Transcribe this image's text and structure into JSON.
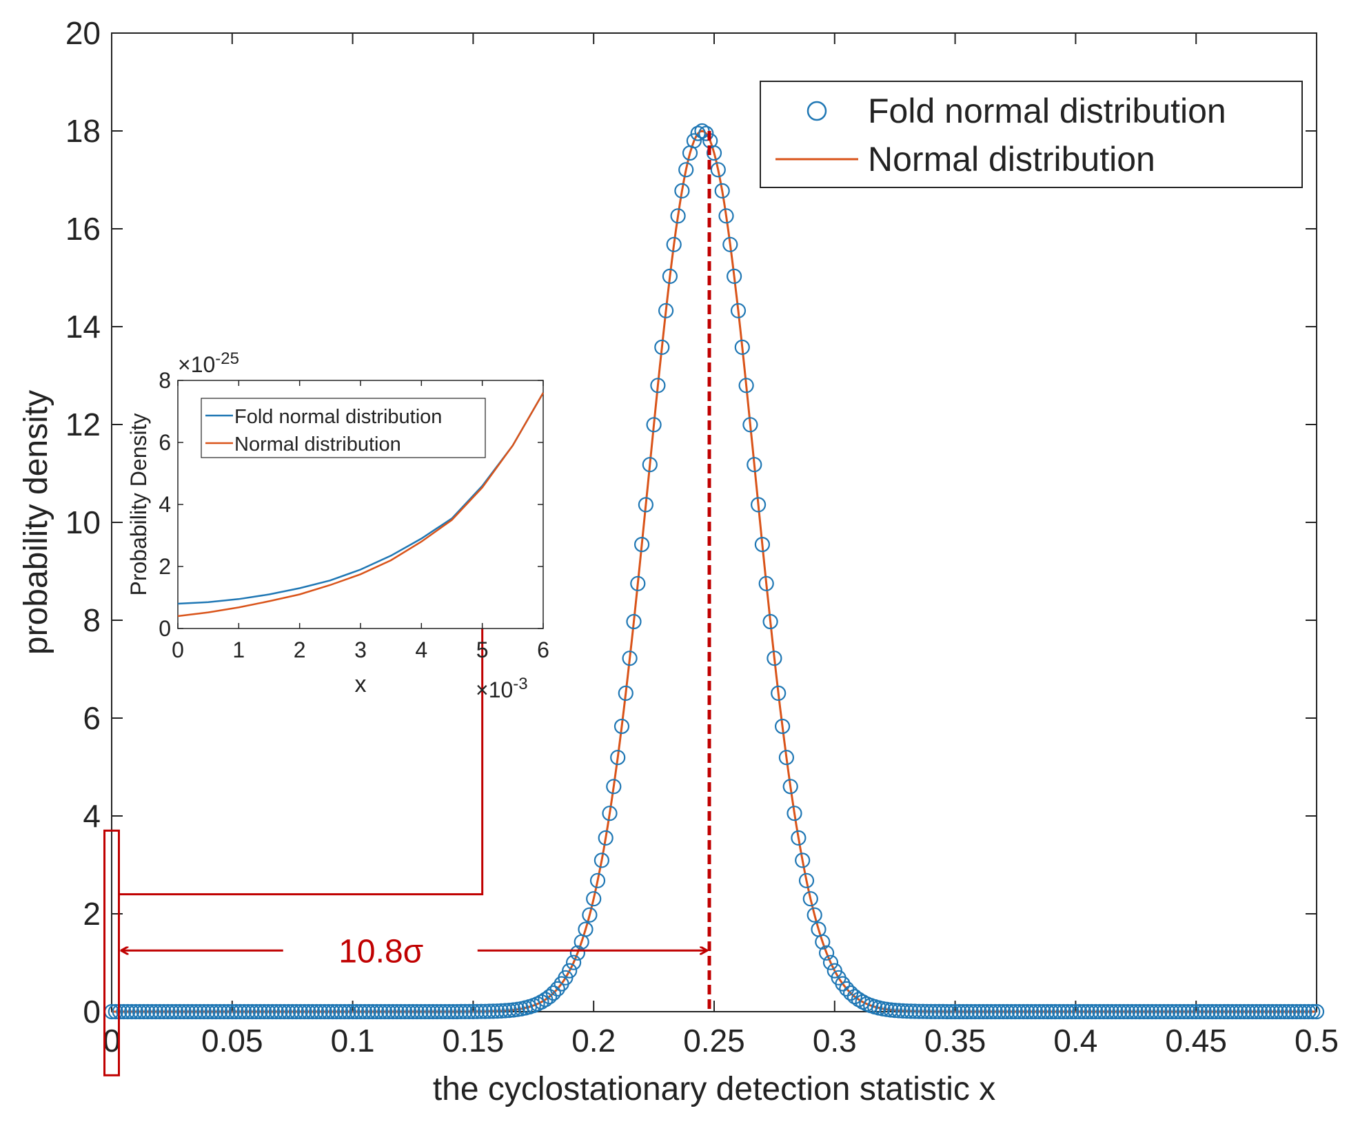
{
  "colors": {
    "fold": "#1f77b4",
    "normal": "#d95319",
    "annotation": "#c00000",
    "axis": "#222222"
  },
  "chart_data": [
    {
      "type": "scatter+line",
      "title": "",
      "xlabel": "the cyclostationary detection statistic x",
      "ylabel": "probability density",
      "xlim": [
        0,
        0.5
      ],
      "ylim": [
        0,
        20
      ],
      "xticks": [
        0,
        0.05,
        0.1,
        0.15,
        0.2,
        0.25,
        0.3,
        0.35,
        0.4,
        0.45,
        0.5
      ],
      "xtick_labels": [
        "0",
        "0.05",
        "0.1",
        "0.15",
        "0.2",
        "0.25",
        "0.3",
        "0.35",
        "0.4",
        "0.45",
        "0.5"
      ],
      "yticks": [
        0,
        2,
        4,
        6,
        8,
        10,
        12,
        14,
        16,
        18,
        20
      ],
      "ytick_labels": [
        "0",
        "2",
        "4",
        "6",
        "8",
        "10",
        "12",
        "14",
        "16",
        "18",
        "20"
      ],
      "legend_position": "top-right",
      "series": [
        {
          "name": "Fold normal distribution",
          "style": "circle-markers",
          "model": {
            "mean": 0.245,
            "sigma": 0.0222,
            "peak": 18.0
          },
          "x_range": [
            0,
            0.5
          ],
          "num_points": 301
        },
        {
          "name": "Normal distribution",
          "style": "line",
          "model": {
            "mean": 0.245,
            "sigma": 0.0222,
            "peak": 18.0
          },
          "x_range": [
            0,
            0.5
          ]
        }
      ],
      "annotations": {
        "peak_x": 0.248,
        "peak_y": 18.0,
        "distance_label": "10.8σ",
        "distance_from_x": 0.003,
        "distance_to_x": 0.248,
        "distance_y": 1.25,
        "zoom_box": {
          "x0": -0.003,
          "x1": 0.003,
          "y0": -1.3,
          "y1": 3.7
        },
        "connector_y": 2.4
      }
    },
    {
      "type": "line",
      "title": "",
      "xlabel": "x",
      "ylabel": "Probability Density",
      "xlim": [
        0,
        6
      ],
      "ylim": [
        0,
        8
      ],
      "x_exponent_label": "×10",
      "x_exponent": "-3",
      "y_exponent_label": "×10",
      "y_exponent": "-25",
      "xticks": [
        0,
        1,
        2,
        3,
        4,
        5,
        6
      ],
      "xtick_labels": [
        "0",
        "1",
        "2",
        "3",
        "4",
        "5",
        "6"
      ],
      "yticks": [
        0,
        2,
        4,
        6,
        8
      ],
      "ytick_labels": [
        "0",
        "2",
        "4",
        "6",
        "8"
      ],
      "legend_position": "top-left",
      "series": [
        {
          "name": "Fold normal distribution",
          "x": [
            0,
            0.5,
            1,
            1.5,
            2,
            2.5,
            3,
            3.5,
            4,
            4.5,
            5,
            5.5,
            6
          ],
          "values": [
            0.8,
            0.85,
            0.95,
            1.1,
            1.3,
            1.55,
            1.9,
            2.35,
            2.9,
            3.55,
            4.6,
            5.9,
            7.6
          ]
        },
        {
          "name": "Normal distribution",
          "x": [
            0,
            0.5,
            1,
            1.5,
            2,
            2.5,
            3,
            3.5,
            4,
            4.5,
            5,
            5.5,
            6
          ],
          "values": [
            0.4,
            0.52,
            0.68,
            0.88,
            1.1,
            1.4,
            1.75,
            2.2,
            2.8,
            3.5,
            4.55,
            5.9,
            7.6
          ]
        }
      ],
      "annotations": {
        "arrow_x": 5.0,
        "arrow_y": 4.8
      }
    }
  ]
}
